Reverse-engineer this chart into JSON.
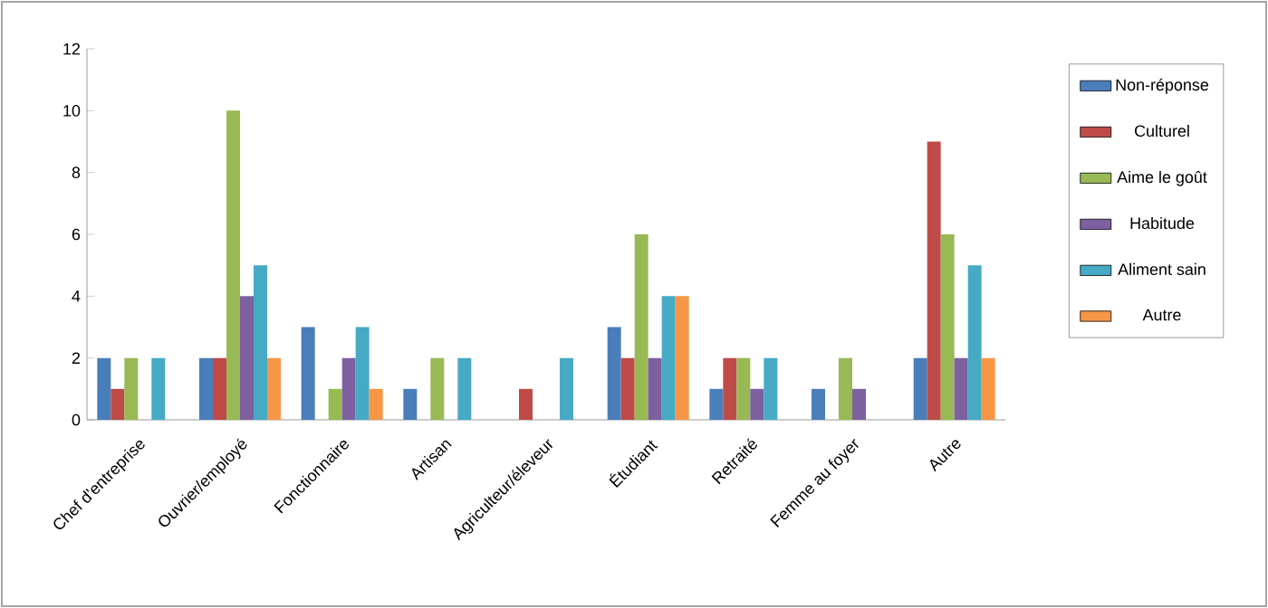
{
  "chart_data": {
    "type": "bar",
    "categories": [
      "Chef d'entreprise",
      "Ouvrier/employé",
      "Fonctionnaire",
      "Artisan",
      "Agriculteur/éleveur",
      "Étudiant",
      "Retraité",
      "Femme au foyer",
      "Autre"
    ],
    "series": [
      {
        "name": "Non-réponse",
        "color": "#4a7ebb",
        "values": [
          2,
          2,
          3,
          1,
          0,
          3,
          1,
          1,
          2
        ]
      },
      {
        "name": "Culturel",
        "color": "#be4b48",
        "values": [
          1,
          2,
          0,
          0,
          1,
          2,
          2,
          0,
          9
        ]
      },
      {
        "name": "Aime le goût",
        "color": "#98b954",
        "values": [
          2,
          10,
          1,
          2,
          0,
          6,
          2,
          2,
          6
        ]
      },
      {
        "name": "Habitude",
        "color": "#7d60a0",
        "values": [
          0,
          4,
          2,
          0,
          0,
          2,
          1,
          1,
          2
        ]
      },
      {
        "name": "Aliment sain",
        "color": "#46aac5",
        "values": [
          2,
          5,
          3,
          2,
          2,
          4,
          2,
          0,
          5
        ]
      },
      {
        "name": "Autre",
        "color": "#f79646",
        "values": [
          0,
          2,
          1,
          0,
          0,
          4,
          0,
          0,
          2
        ]
      }
    ],
    "ylim": [
      0,
      12
    ],
    "yticks": [
      0,
      2,
      4,
      6,
      8,
      10,
      12
    ],
    "legend": "right"
  }
}
